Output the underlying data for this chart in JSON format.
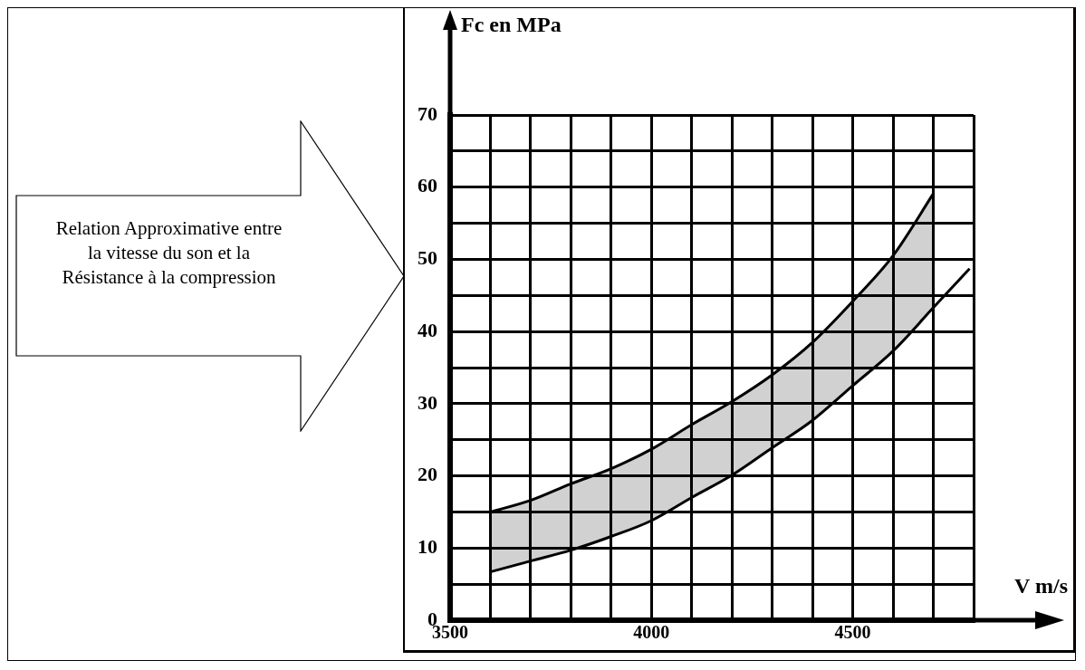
{
  "chart_data": {
    "type": "line",
    "xlabel": "V m/s",
    "ylabel": "Fc en MPa",
    "annotations": [
      "Relation Approximative entre la vitesse du son et la Résistance à la compression"
    ],
    "xlim": [
      3500,
      4800
    ],
    "xticks": [
      3500,
      {
        "value": 3600,
        "label": null
      },
      {
        "value": 3700,
        "label": null
      },
      {
        "value": 3800,
        "label": null
      },
      {
        "value": 3900,
        "label": null
      },
      4000,
      {
        "value": 4100,
        "label": null
      },
      {
        "value": 4200,
        "label": null
      },
      {
        "value": 4300,
        "label": null
      },
      {
        "value": 4400,
        "label": null
      },
      4500,
      {
        "value": 4600,
        "label": null
      },
      {
        "value": 4700,
        "label": null
      },
      {
        "value": 4800,
        "label": null
      }
    ],
    "ylim": [
      0,
      70
    ],
    "yticks": [
      0,
      {
        "value": 5,
        "label": null
      },
      10,
      {
        "value": 15,
        "label": null
      },
      20,
      {
        "value": 25,
        "label": null
      },
      30,
      {
        "value": 35,
        "label": null
      },
      40,
      {
        "value": 45,
        "label": null
      },
      50,
      {
        "value": 55,
        "label": null
      },
      60,
      {
        "value": 65,
        "label": null
      },
      70
    ],
    "grid": true,
    "legend": false,
    "marker": "none",
    "line_style": "solid",
    "series": [
      {
        "color": "#000000",
        "x": [
          3600,
          3700,
          3800,
          3900,
          4000,
          4100,
          4200,
          4300,
          4400,
          4500,
          4600,
          4700
        ],
        "values": [
          15,
          16.6,
          18.9,
          21,
          23.7,
          27.1,
          30.3,
          34,
          38.5,
          44.2,
          50.5,
          59.1
        ],
        "lower": [
          6.7,
          8.2,
          9.7,
          11.6,
          13.8,
          17,
          20.1,
          23.9,
          27.7,
          32.5,
          37.3,
          43.3
        ],
        "upper": [
          15,
          16.6,
          18.9,
          21,
          23.7,
          27.1,
          30.3,
          34,
          38.5,
          44.2,
          50.5,
          59.1
        ]
      },
      {
        "color": "#000000",
        "x": [
          3600,
          3700,
          3800,
          3900,
          4000,
          4100,
          4200,
          4300,
          4400,
          4500,
          4600,
          4700,
          4790
        ],
        "values": [
          6.7,
          8.2,
          9.7,
          11.6,
          13.8,
          17,
          20.1,
          23.9,
          27.7,
          32.5,
          37.3,
          43.3,
          48.7
        ]
      }
    ]
  }
}
